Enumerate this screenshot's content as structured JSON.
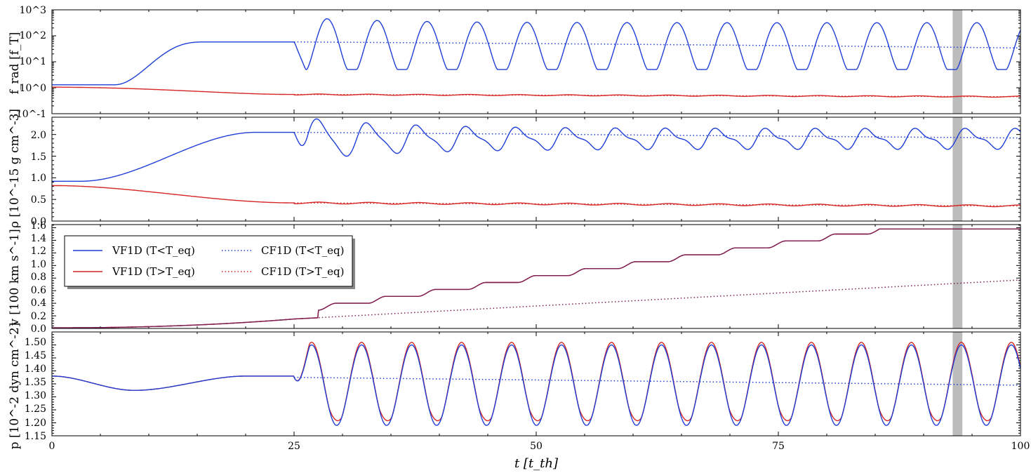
{
  "chart_data": {
    "type": "line",
    "xlabel": "t [t_th]",
    "xlim": [
      0,
      100
    ],
    "x_ticks": [
      "0",
      "25",
      "50",
      "75",
      "100"
    ],
    "highlight_span": [
      93,
      94
    ],
    "legend": {
      "placement": "upper-left of third panel",
      "entries": [
        "VF1D (T<T_eq)",
        "VF1D (T>T_eq)",
        "CF1D (T<T_eq)",
        "CF1D (T>T_eq)"
      ]
    },
    "colors": {
      "cold": "#1f3fd6",
      "hot": "#d62626",
      "cf_mixed": "#7a1f55",
      "span": "#a0a0a0"
    },
    "panels": [
      {
        "id": "frad",
        "ylabel": "f_rad [f_T]",
        "scale": "log",
        "ylim": [
          0.1,
          1000
        ],
        "y_ticks": [
          "10^-1",
          "10^0",
          "10^1",
          "10^2",
          "10^3"
        ],
        "series": [
          {
            "style": "solid",
            "group": "cold",
            "x": [
              0,
              5,
              7,
              8,
              10,
              12,
              15,
              18,
              22,
              25,
              26.2,
              28.3,
              30.4,
              32.1
            ],
            "y": [
              1.3,
              1.5,
              2.0,
              3.0,
              10,
              25,
              45,
              55,
              58,
              58,
              10,
              500,
              8,
              400
            ]
          },
          {
            "style": "dotted",
            "group": "cold",
            "x": [
              25,
              100
            ],
            "y": [
              58,
              34
            ]
          },
          {
            "style": "solid",
            "group": "hot",
            "x": [
              0,
              25,
              100
            ],
            "y": [
              1.05,
              0.55,
              0.45
            ]
          },
          {
            "style": "dotted",
            "group": "hot",
            "x": [
              25,
              100
            ],
            "y": [
              0.55,
              0.45
            ]
          }
        ]
      },
      {
        "id": "rho",
        "ylabel": "ρ [10^-15 g cm^-3]",
        "scale": "linear",
        "ylim": [
          0.0,
          2.4
        ],
        "y_ticks": [
          "0.0",
          "0.5",
          "1.0",
          "1.5",
          "2.0"
        ],
        "series": [
          {
            "style": "solid",
            "group": "cold",
            "x": [
              0,
              5,
              8,
              12,
              16,
              20,
              25,
              26.3,
              28.2,
              30.5,
              33.3
            ],
            "y": [
              0.92,
              1.05,
              1.3,
              1.75,
              1.98,
              2.04,
              2.05,
              1.85,
              2.32,
              1.75,
              2.2
            ]
          },
          {
            "style": "dotted",
            "group": "cold",
            "x": [
              25,
              100
            ],
            "y": [
              2.05,
              1.92
            ]
          },
          {
            "style": "solid",
            "group": "hot",
            "x": [
              0,
              10,
              25,
              100
            ],
            "y": [
              0.82,
              0.6,
              0.42,
              0.35
            ]
          },
          {
            "style": "dotted",
            "group": "hot",
            "x": [
              25,
              100
            ],
            "y": [
              0.42,
              0.35
            ]
          }
        ]
      },
      {
        "id": "v",
        "ylabel": "v [100 km s^-1]",
        "scale": "linear",
        "ylim": [
          0.0,
          1.65
        ],
        "y_ticks": [
          "0.0",
          "0.2",
          "0.4",
          "0.6",
          "0.8",
          "1.0",
          "1.2",
          "1.4",
          "1.6"
        ],
        "series": [
          {
            "style": "solid",
            "group": "both",
            "x": [
              0,
              10,
              20,
              25,
              28,
              30,
              32,
              35,
              40,
              50,
              60,
              70,
              80,
              90,
              93,
              95,
              100
            ],
            "y": [
              0.01,
              0.03,
              0.1,
              0.15,
              0.17,
              0.27,
              0.3,
              0.4,
              0.52,
              0.7,
              0.88,
              1.05,
              1.2,
              1.4,
              1.42,
              1.48,
              1.58
            ]
          },
          {
            "style": "dotted",
            "group": "both",
            "x": [
              0,
              25,
              100
            ],
            "y": [
              0.01,
              0.15,
              0.77
            ]
          }
        ]
      },
      {
        "id": "p",
        "ylabel": "p [10^-2 dyn cm^-2]",
        "scale": "linear",
        "ylim": [
          1.15,
          1.55
        ],
        "y_ticks": [
          "1.15",
          "1.20",
          "1.25",
          "1.30",
          "1.35",
          "1.40",
          "1.45",
          "1.50"
        ],
        "series": [
          {
            "style": "solid",
            "group": "cold",
            "x": [
              0,
              5,
              8.5,
              12,
              16,
              20,
              25,
              26.8,
              28.8,
              32.1
            ],
            "y": [
              1.38,
              1.36,
              1.325,
              1.355,
              1.375,
              1.38,
              1.375,
              1.525,
              1.25,
              1.505
            ]
          },
          {
            "style": "solid",
            "group": "hot",
            "x": [
              0,
              5,
              8.5,
              12,
              16,
              20,
              25,
              26.8,
              28.8,
              32.1
            ],
            "y": [
              1.38,
              1.36,
              1.325,
              1.355,
              1.375,
              1.38,
              1.375,
              1.535,
              1.33,
              1.515
            ]
          },
          {
            "style": "dotted",
            "group": "cold",
            "x": [
              25,
              100
            ],
            "y": [
              1.375,
              1.345
            ]
          }
        ]
      }
    ]
  }
}
